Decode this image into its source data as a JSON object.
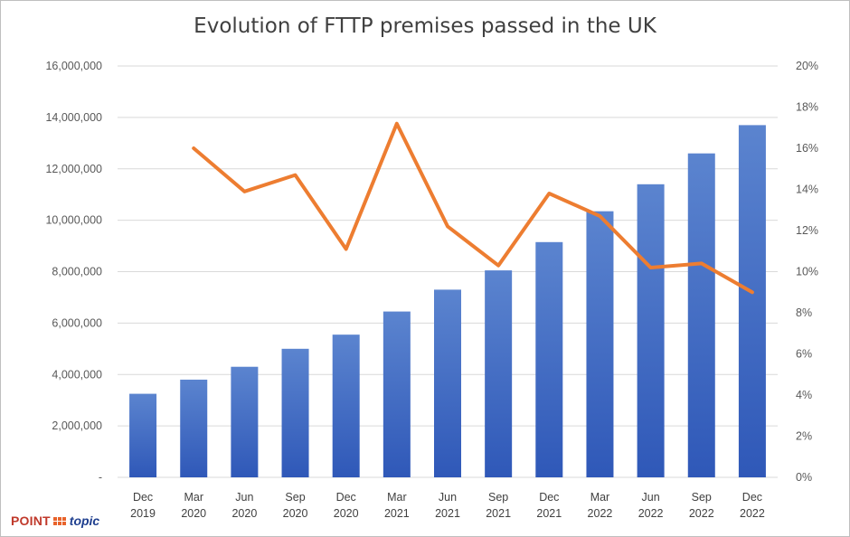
{
  "chart_data": {
    "type": "bar",
    "title": "Evolution of FTTP premises passed in the UK",
    "categories": [
      [
        "Dec",
        "2019"
      ],
      [
        "Mar",
        "2020"
      ],
      [
        "Jun",
        "2020"
      ],
      [
        "Sep",
        "2020"
      ],
      [
        "Dec",
        "2020"
      ],
      [
        "Mar",
        "2021"
      ],
      [
        "Jun",
        "2021"
      ],
      [
        "Sep",
        "2021"
      ],
      [
        "Dec",
        "2021"
      ],
      [
        "Mar",
        "2022"
      ],
      [
        "Jun",
        "2022"
      ],
      [
        "Sep",
        "2022"
      ],
      [
        "Dec",
        "2022"
      ]
    ],
    "series": [
      {
        "type": "bar",
        "axis": "left",
        "color": "#4472c4",
        "values": [
          3250000,
          3800000,
          4300000,
          5000000,
          5550000,
          6450000,
          7300000,
          8050000,
          9150000,
          10350000,
          11400000,
          12600000,
          13700000
        ]
      },
      {
        "type": "line",
        "axis": "right",
        "color": "#ed7d31",
        "values": [
          null,
          0.16,
          0.139,
          0.147,
          0.111,
          0.172,
          0.122,
          0.103,
          0.138,
          0.127,
          0.102,
          0.104,
          0.09
        ]
      }
    ],
    "y_left": {
      "range": [
        0,
        16000000
      ],
      "ticks": [
        0,
        2000000,
        4000000,
        6000000,
        8000000,
        10000000,
        12000000,
        14000000,
        16000000
      ],
      "tick_labels": [
        "-",
        "2,000,000",
        "4,000,000",
        "6,000,000",
        "8,000,000",
        "10,000,000",
        "12,000,000",
        "14,000,000",
        "16,000,000"
      ]
    },
    "y_right": {
      "range": [
        0,
        0.2
      ],
      "ticks": [
        0,
        0.02,
        0.04,
        0.06,
        0.08,
        0.1,
        0.12,
        0.14,
        0.16,
        0.18,
        0.2
      ],
      "tick_labels": [
        "0%",
        "2%",
        "4%",
        "6%",
        "8%",
        "10%",
        "12%",
        "14%",
        "16%",
        "18%",
        "20%"
      ]
    },
    "grid": true,
    "legend": "none",
    "xlabel": "",
    "ylabel": ""
  },
  "logo": {
    "left_text": "POINT",
    "right_text": "topic"
  }
}
